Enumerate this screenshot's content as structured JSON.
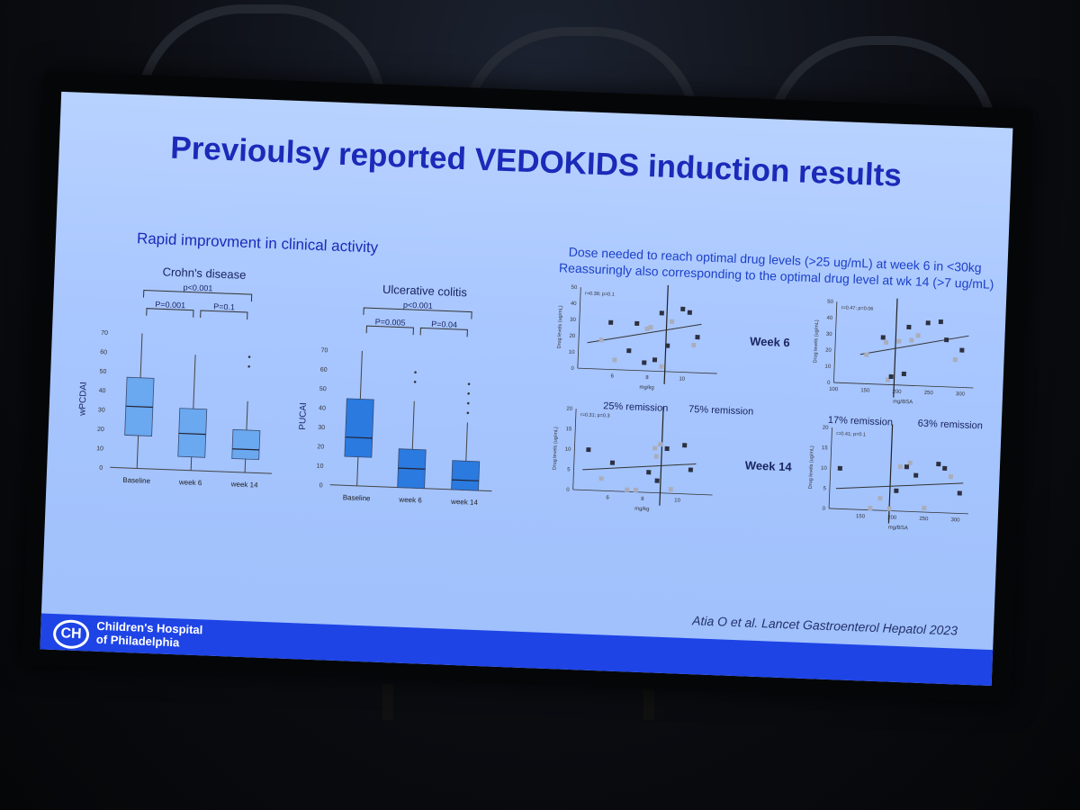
{
  "slide": {
    "title": "Previoulsy reported VEDOKIDS induction results",
    "left_heading": "Rapid improvment in clinical activity",
    "right_heading": "Dose needed to reach optimal drug levels (>25 ug/mL) at week 6 in <30kg",
    "right_subheading": "Reassuringly also corresponding to the optimal drug level at wk 14 (>7 ug/mL)",
    "citation": "Atia O et al. Lancet Gastroenterol Hepatol 2023",
    "footer_org_line1": "Children's Hospital",
    "footer_org_line2": "of Philadelphia",
    "logo_text": "CH",
    "week6": "Week 6",
    "week14": "Week 14",
    "rem25": "25% remission",
    "rem75": "75% remission",
    "rem17": "17% remission",
    "rem63": "63% remission"
  },
  "colors": {
    "slide_bg": "#a8c6ff",
    "title": "#1b2ab8",
    "box_crohn": "#6aa8ef",
    "box_uc": "#2a7ae0",
    "footer": "#1e44e6"
  },
  "chart_data": [
    {
      "type": "box",
      "title": "Crohn's disease",
      "ylabel": "wPCDAI",
      "categories": [
        "Baseline",
        "week 6",
        "week 14"
      ],
      "ylim": [
        0,
        70
      ],
      "yticks": [
        0,
        10,
        20,
        30,
        40,
        50,
        60,
        70
      ],
      "boxes": [
        {
          "min": 0,
          "q1": 17,
          "median": 32,
          "q3": 47,
          "max": 70
        },
        {
          "min": 0,
          "q1": 7,
          "median": 19,
          "q3": 32,
          "max": 60
        },
        {
          "min": 0,
          "q1": 7,
          "median": 12,
          "q3": 22,
          "max": 37,
          "outliers": [
            55,
            60
          ]
        }
      ],
      "brackets": [
        {
          "from": 0,
          "to": 2,
          "label": "p<0.001"
        },
        {
          "from": 0,
          "to": 1,
          "label": "P=0.001"
        },
        {
          "from": 1,
          "to": 2,
          "label": "P=0.1"
        }
      ]
    },
    {
      "type": "box",
      "title": "Ulcerative colitis",
      "ylabel": "PUCAI",
      "categories": [
        "Baseline",
        "week 6",
        "week 14"
      ],
      "ylim": [
        0,
        70
      ],
      "yticks": [
        0,
        10,
        20,
        30,
        40,
        50,
        60,
        70
      ],
      "boxes": [
        {
          "min": 0,
          "q1": 15,
          "median": 25,
          "q3": 45,
          "max": 70
        },
        {
          "min": 0,
          "q1": 0,
          "median": 10,
          "q3": 20,
          "max": 45,
          "outliers": [
            55,
            60
          ]
        },
        {
          "min": 0,
          "q1": 0,
          "median": 5,
          "q3": 15,
          "max": 35,
          "outliers": [
            40,
            45,
            50,
            55
          ]
        }
      ],
      "brackets": [
        {
          "from": 0,
          "to": 2,
          "label": "p<0.001"
        },
        {
          "from": 0,
          "to": 1,
          "label": "P=0.005"
        },
        {
          "from": 1,
          "to": 2,
          "label": "P=0.04"
        }
      ]
    },
    {
      "type": "scatter",
      "annotation": "r=0.38; p=0.1",
      "xlabel": "mg/kg",
      "ylabel": "Drug levels (ug/mL)",
      "xlim": [
        4,
        12
      ],
      "ylim": [
        0,
        50
      ],
      "xticks": [
        6,
        8,
        10
      ],
      "yticks": [
        0,
        10,
        20,
        30,
        40,
        50
      ],
      "threshold_x": 9,
      "fit": [
        [
          4.5,
          16
        ],
        [
          11,
          30
        ]
      ],
      "points_dark": [
        [
          5.8,
          29
        ],
        [
          7.3,
          29
        ],
        [
          8.7,
          36
        ],
        [
          9.9,
          39
        ],
        [
          10.3,
          37
        ],
        [
          10.8,
          22
        ],
        [
          7.8,
          5
        ],
        [
          8.4,
          7
        ],
        [
          6.9,
          12
        ],
        [
          9.1,
          16
        ]
      ],
      "points_light": [
        [
          5.3,
          18
        ],
        [
          7.9,
          26
        ],
        [
          8.1,
          27
        ],
        [
          9.3,
          31
        ],
        [
          6.1,
          6
        ],
        [
          8.8,
          3
        ],
        [
          10.6,
          17
        ]
      ]
    },
    {
      "type": "scatter",
      "annotation": "r=0.47; p=0.06",
      "xlabel": "mg/BSA",
      "ylabel": "Drug levels (ug/mL)",
      "xlim": [
        100,
        320
      ],
      "ylim": [
        0,
        50
      ],
      "xticks": [
        100,
        150,
        200,
        250,
        300
      ],
      "yticks": [
        0,
        10,
        20,
        30,
        40,
        50
      ],
      "threshold_x": 195,
      "fit": [
        [
          140,
          18
        ],
        [
          310,
          32
        ]
      ],
      "points_dark": [
        [
          175,
          29
        ],
        [
          215,
          36
        ],
        [
          245,
          39
        ],
        [
          265,
          40
        ],
        [
          275,
          29
        ],
        [
          300,
          23
        ],
        [
          190,
          5
        ],
        [
          210,
          7
        ]
      ],
      "points_light": [
        [
          150,
          18
        ],
        [
          180,
          26
        ],
        [
          200,
          27
        ],
        [
          230,
          31
        ],
        [
          185,
          3
        ],
        [
          290,
          17
        ],
        [
          220,
          28
        ]
      ]
    },
    {
      "type": "scatter",
      "annotation": "r=0.31; p=0.3",
      "xlabel": "mg/kg",
      "ylabel": "Drug levels (ug/mL)",
      "xlim": [
        4,
        12
      ],
      "ylim": [
        0,
        20
      ],
      "xticks": [
        6,
        8,
        10
      ],
      "yticks": [
        0,
        5,
        10,
        15,
        20
      ],
      "threshold_x": 9,
      "fit": [
        [
          4.5,
          5
        ],
        [
          11,
          7.5
        ]
      ],
      "points_dark": [
        [
          4.8,
          10
        ],
        [
          8.3,
          5
        ],
        [
          9.3,
          11
        ],
        [
          10.3,
          12
        ],
        [
          10.7,
          6
        ],
        [
          6.2,
          7
        ],
        [
          8.8,
          3
        ]
      ],
      "points_light": [
        [
          7.1,
          0.5
        ],
        [
          7.6,
          0.5
        ],
        [
          8.7,
          9
        ],
        [
          8.9,
          12
        ],
        [
          9.6,
          1
        ],
        [
          5.6,
          3
        ],
        [
          8.6,
          11
        ]
      ]
    },
    {
      "type": "scatter",
      "annotation": "r=0.41; p=0.1",
      "xlabel": "mg/BSA",
      "ylabel": "Drug levels (ug/mL)",
      "xlim": [
        100,
        320
      ],
      "ylim": [
        0,
        20
      ],
      "xticks": [
        150,
        200,
        250,
        300
      ],
      "yticks": [
        0,
        5,
        10,
        15,
        20
      ],
      "threshold_x": 195,
      "fit": [
        [
          110,
          5
        ],
        [
          310,
          7.5
        ]
      ],
      "points_dark": [
        [
          115,
          10
        ],
        [
          205,
          5
        ],
        [
          220,
          11
        ],
        [
          270,
          12
        ],
        [
          305,
          5
        ],
        [
          235,
          9
        ],
        [
          280,
          11
        ]
      ],
      "points_light": [
        [
          165,
          0.5
        ],
        [
          180,
          3
        ],
        [
          210,
          11
        ],
        [
          225,
          12
        ],
        [
          250,
          1
        ],
        [
          290,
          9
        ],
        [
          195,
          0.5
        ]
      ]
    }
  ]
}
